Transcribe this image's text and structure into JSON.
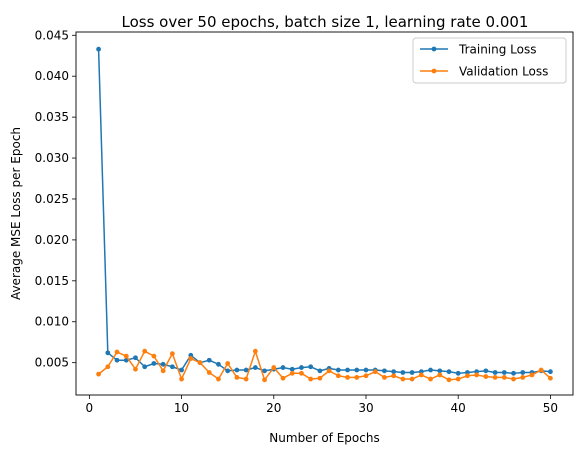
{
  "chart_data": {
    "type": "line",
    "title": "Loss over 50 epochs, batch size 1, learning rate 0.001",
    "xlabel": "Number of Epochs",
    "ylabel": "Average MSE Loss per Epoch",
    "xlim": [
      -1.45,
      52.45
    ],
    "ylim": [
      0.00105,
      0.0454
    ],
    "xticks": [
      0,
      10,
      20,
      30,
      40,
      50
    ],
    "yticks": [
      0.005,
      0.01,
      0.015,
      0.02,
      0.025,
      0.03,
      0.035,
      0.04,
      0.045
    ],
    "ytick_labels": [
      "0.005",
      "0.010",
      "0.015",
      "0.020",
      "0.025",
      "0.030",
      "0.035",
      "0.040",
      "0.045"
    ],
    "grid": false,
    "legend_position": "top-right",
    "x": [
      1,
      2,
      3,
      4,
      5,
      6,
      7,
      8,
      9,
      10,
      11,
      12,
      13,
      14,
      15,
      16,
      17,
      18,
      19,
      20,
      21,
      22,
      23,
      24,
      25,
      26,
      27,
      28,
      29,
      30,
      31,
      32,
      33,
      34,
      35,
      36,
      37,
      38,
      39,
      40,
      41,
      42,
      43,
      44,
      45,
      46,
      47,
      48,
      49,
      50
    ],
    "series": [
      {
        "name": "Training Loss",
        "color": "#1f77b4",
        "values": [
          0.0433,
          0.0062,
          0.0053,
          0.0053,
          0.0056,
          0.0045,
          0.0049,
          0.0048,
          0.0045,
          0.0041,
          0.0059,
          0.005,
          0.0053,
          0.0048,
          0.004,
          0.0041,
          0.0041,
          0.0044,
          0.004,
          0.0042,
          0.0044,
          0.0042,
          0.0044,
          0.0045,
          0.004,
          0.0043,
          0.0041,
          0.0041,
          0.0041,
          0.0041,
          0.0041,
          0.004,
          0.0039,
          0.0038,
          0.0038,
          0.0039,
          0.0041,
          0.004,
          0.0039,
          0.0037,
          0.0038,
          0.0039,
          0.004,
          0.0038,
          0.0038,
          0.0037,
          0.0038,
          0.0038,
          0.004,
          0.0039
        ]
      },
      {
        "name": "Validation Loss",
        "color": "#ff7f0e",
        "values": [
          0.0036,
          0.0045,
          0.0063,
          0.0058,
          0.0042,
          0.0064,
          0.0058,
          0.004,
          0.0061,
          0.003,
          0.0055,
          0.005,
          0.0038,
          0.003,
          0.0049,
          0.0032,
          0.003,
          0.0064,
          0.0029,
          0.0044,
          0.0031,
          0.0037,
          0.0037,
          0.003,
          0.0031,
          0.004,
          0.0034,
          0.0032,
          0.0032,
          0.0034,
          0.0039,
          0.0032,
          0.0034,
          0.003,
          0.003,
          0.0035,
          0.003,
          0.0035,
          0.0029,
          0.003,
          0.0034,
          0.0035,
          0.0033,
          0.0032,
          0.0032,
          0.003,
          0.0032,
          0.0035,
          0.0041,
          0.0031
        ]
      }
    ]
  }
}
